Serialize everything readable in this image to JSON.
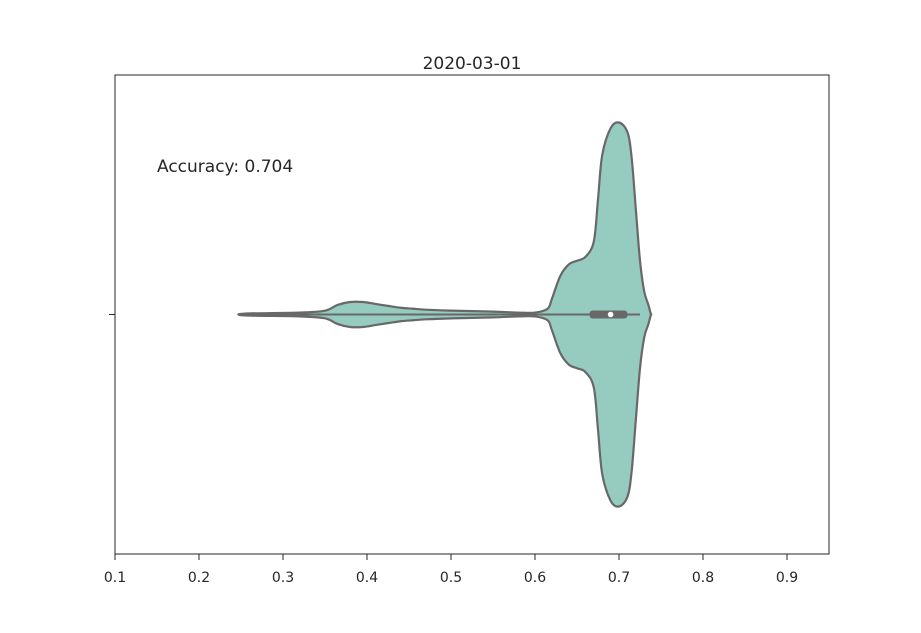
{
  "chart_data": {
    "type": "violin",
    "title": "2020-03-01",
    "xlabel": "",
    "ylabel": "",
    "xlim": [
      0.1,
      0.95
    ],
    "xticks": [
      0.1,
      0.2,
      0.3,
      0.4,
      0.5,
      0.6,
      0.7,
      0.8,
      0.9
    ],
    "xtick_labels": [
      "0.1",
      "0.2",
      "0.3",
      "0.4",
      "0.5",
      "0.6",
      "0.7",
      "0.8",
      "0.9"
    ],
    "grid": false,
    "orientation": "horizontal",
    "fill_color": "#96cbc0",
    "edge_color": "#686868",
    "annotation": "Accuracy: 0.704",
    "violin": {
      "min": 0.255,
      "max": 0.725,
      "q1": 0.665,
      "median": 0.69,
      "q3": 0.71,
      "whisker_low": 0.255,
      "whisker_high": 0.725,
      "density_profile": {
        "x": [
          0.255,
          0.32,
          0.35,
          0.365,
          0.38,
          0.395,
          0.41,
          0.425,
          0.44,
          0.455,
          0.47,
          0.5,
          0.55,
          0.58,
          0.6,
          0.615,
          0.62,
          0.63,
          0.64,
          0.65,
          0.66,
          0.67,
          0.675,
          0.68,
          0.69,
          0.7,
          0.71,
          0.715,
          0.72,
          0.725,
          0.73,
          0.735,
          0.738
        ],
        "density": [
          0.005,
          0.01,
          0.02,
          0.05,
          0.065,
          0.065,
          0.055,
          0.045,
          0.035,
          0.03,
          0.025,
          0.02,
          0.015,
          0.01,
          0.01,
          0.03,
          0.08,
          0.2,
          0.26,
          0.28,
          0.3,
          0.38,
          0.6,
          0.83,
          0.97,
          1.0,
          0.95,
          0.82,
          0.55,
          0.28,
          0.12,
          0.05,
          0.0
        ]
      }
    }
  }
}
